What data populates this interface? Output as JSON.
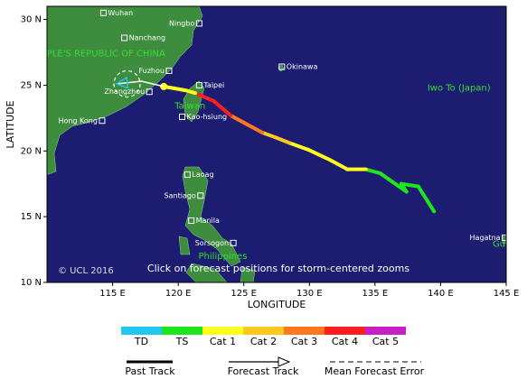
{
  "map": {
    "lonlim": [
      110,
      145
    ],
    "latlim": [
      10,
      31
    ],
    "lonticks": [
      {
        "value": 115,
        "label": "115 E"
      },
      {
        "value": 120,
        "label": "120 E"
      },
      {
        "value": 125,
        "label": "125 E"
      },
      {
        "value": 130,
        "label": "130 E"
      },
      {
        "value": 135,
        "label": "135 E"
      },
      {
        "value": 140,
        "label": "140 E"
      },
      {
        "value": 145,
        "label": "145 E"
      }
    ],
    "latticks": [
      {
        "value": 10,
        "label": "10 N"
      },
      {
        "value": 15,
        "label": "15 N"
      },
      {
        "value": 20,
        "label": "20 N"
      },
      {
        "value": 25,
        "label": "25 N"
      },
      {
        "value": 30,
        "label": "30 N"
      }
    ],
    "xlabel": "LONGITUDE",
    "ylabel": "LATITUDE",
    "copyright": "© UCL 2016",
    "note": "Click on forecast positions for storm-centered zooms",
    "regions": [
      {
        "name": "PEOPLE'S REPUBLIC OF CHINA",
        "lon": 113.8,
        "lat": 27.4
      },
      {
        "name": "Taiwan",
        "lon": 120.9,
        "lat": 23.4
      },
      {
        "name": "Philippines",
        "lon": 123.4,
        "lat": 12.0
      },
      {
        "name": "Iwo To (Japan)",
        "lon": 141.4,
        "lat": 24.8
      },
      {
        "name": "Guam",
        "lon": 145.0,
        "lat": 12.9
      }
    ],
    "cities": [
      {
        "name": "Wuhan",
        "lon": 114.3,
        "lat": 30.5
      },
      {
        "name": "Nanchang",
        "lon": 115.9,
        "lat": 28.6
      },
      {
        "name": "Ningbo",
        "lon": 121.6,
        "lat": 29.7
      },
      {
        "name": "Fuzhou",
        "lon": 119.3,
        "lat": 26.1
      },
      {
        "name": "Taipei",
        "lon": 121.6,
        "lat": 25.0
      },
      {
        "name": "Okinawa",
        "lon": 127.9,
        "lat": 26.4
      },
      {
        "name": "Zhangzhou",
        "lon": 117.8,
        "lat": 24.5
      },
      {
        "name": "Hong Kong",
        "lon": 114.2,
        "lat": 22.3
      },
      {
        "name": "Kao-hsiung",
        "lon": 120.3,
        "lat": 22.6
      },
      {
        "name": "Laoag",
        "lon": 120.7,
        "lat": 18.2
      },
      {
        "name": "Santiago",
        "lon": 121.7,
        "lat": 16.6
      },
      {
        "name": "Manila",
        "lon": 121.0,
        "lat": 14.7
      },
      {
        "name": "Sorsogon",
        "lon": 124.2,
        "lat": 13.0
      },
      {
        "name": "Hagatna",
        "lon": 144.9,
        "lat": 13.4
      }
    ],
    "track": {
      "past": [
        {
          "lon": 139.5,
          "lat": 15.4,
          "category": 0
        },
        {
          "lon": 138.3,
          "lat": 17.3,
          "category": 1
        },
        {
          "lon": 137.0,
          "lat": 17.5,
          "category": 1
        },
        {
          "lon": 137.4,
          "lat": 16.9,
          "category": 1
        },
        {
          "lon": 135.4,
          "lat": 18.3,
          "category": 1
        },
        {
          "lon": 134.3,
          "lat": 18.6,
          "category": 1
        },
        {
          "lon": 132.9,
          "lat": 18.6,
          "category": 2
        },
        {
          "lon": 131.6,
          "lat": 19.3,
          "category": 2
        },
        {
          "lon": 129.9,
          "lat": 20.1,
          "category": 2
        },
        {
          "lon": 128.5,
          "lat": 20.6,
          "category": 2
        },
        {
          "lon": 127.5,
          "lat": 21.0,
          "category": 3
        },
        {
          "lon": 126.4,
          "lat": 21.4,
          "category": 3
        },
        {
          "lon": 125.1,
          "lat": 22.1,
          "category": 4
        },
        {
          "lon": 124.0,
          "lat": 22.7,
          "category": 4
        },
        {
          "lon": 122.7,
          "lat": 23.8,
          "category": 5
        },
        {
          "lon": 121.3,
          "lat": 24.4,
          "category": 5
        },
        {
          "lon": 120.6,
          "lat": 24.6,
          "category": 2
        },
        {
          "lon": 118.9,
          "lat": 24.9,
          "category": 2
        }
      ],
      "forecast": [
        {
          "lon": 118.9,
          "lat": 24.9
        },
        {
          "lon": 117.2,
          "lat": 25.3
        },
        {
          "lon": 115.3,
          "lat": 25.1
        }
      ],
      "error_circle": {
        "lon": 116.1,
        "lat": 25.1,
        "radius": 1.0
      }
    },
    "legend": {
      "categories": [
        {
          "name": "TD",
          "color": "#1ec8f0"
        },
        {
          "name": "TS",
          "color": "#1ee61e"
        },
        {
          "name": "Cat 1",
          "color": "#ffff1e"
        },
        {
          "name": "Cat 2",
          "color": "#ffc81e"
        },
        {
          "name": "Cat 3",
          "color": "#ff781e"
        },
        {
          "name": "Cat 4",
          "color": "#ff1e1e"
        },
        {
          "name": "Cat 5",
          "color": "#c81ec8"
        }
      ],
      "lines": [
        "Past Track",
        "Forecast Track",
        "Mean Forecast Error"
      ]
    }
  }
}
